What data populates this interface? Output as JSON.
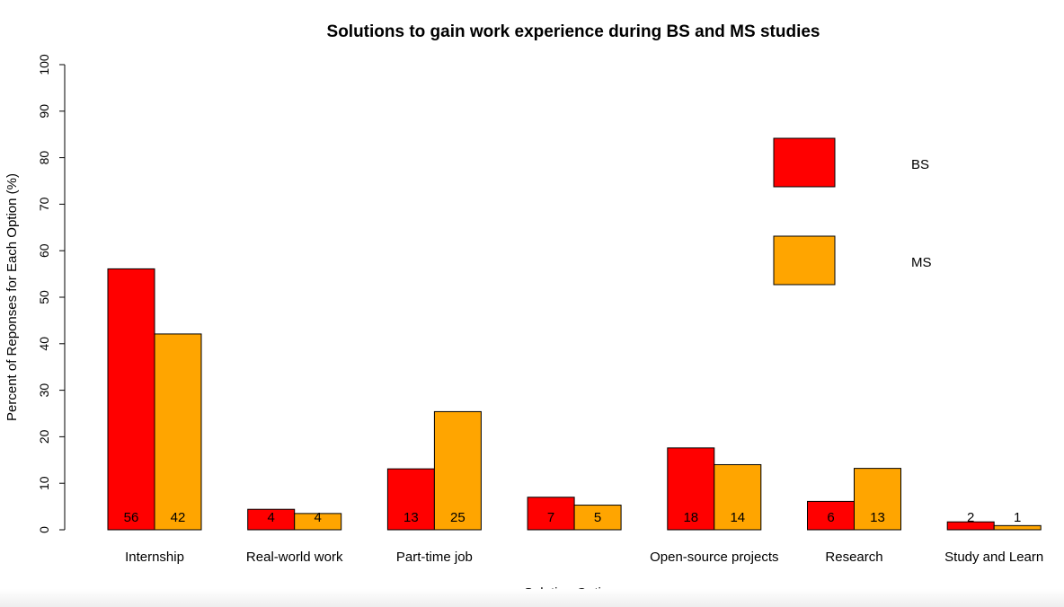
{
  "chart_data": {
    "type": "bar",
    "title": "Solutions to gain work experience during BS and MS studies",
    "xlabel": "Solution Options",
    "ylabel": "Percent of Reponses for Each Option (%)",
    "ylim": [
      0,
      100
    ],
    "yticks": [
      "0",
      "10",
      "20",
      "30",
      "40",
      "50",
      "60",
      "70",
      "80",
      "90",
      "100"
    ],
    "grid": false,
    "legend_position": "top-right",
    "categories": [
      "Internship",
      "Real-world work",
      "Part-time job",
      "",
      "Open-source projects",
      "Research",
      "Study and Learn"
    ],
    "series": [
      {
        "name": "BS",
        "color": "#ff0000",
        "values": [
          56.1,
          4.4,
          13.1,
          7.0,
          17.6,
          6.1,
          1.7
        ],
        "labels": [
          "56",
          "4",
          "13",
          "7",
          "18",
          "6",
          "2"
        ]
      },
      {
        "name": "MS",
        "color": "#ffa500",
        "values": [
          42.1,
          3.5,
          25.4,
          5.3,
          14.0,
          13.2,
          0.9
        ],
        "labels": [
          "42",
          "4",
          "25",
          "5",
          "14",
          "13",
          "1"
        ]
      }
    ]
  }
}
